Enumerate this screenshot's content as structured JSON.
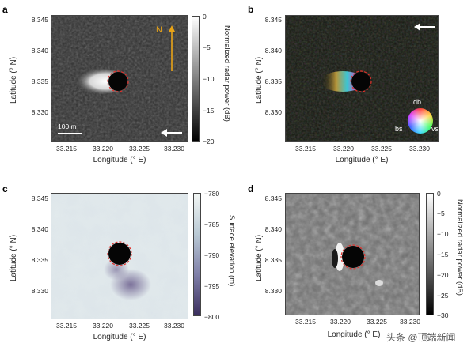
{
  "panels": {
    "a": {
      "letter": "a",
      "ylabel": "Latitude (° N)",
      "xlabel": "Longitude (° E)",
      "yticks": [
        "8.345",
        "8.340",
        "8.335",
        "8.330"
      ],
      "xticks": [
        "33.215",
        "33.220",
        "33.225",
        "33.230"
      ],
      "scalebar_label": "100 m",
      "north_label": "N",
      "colorbar_label": "Normalized radar power (dB)",
      "colorbar_ticks": [
        "0",
        "−5",
        "−10",
        "−15",
        "−20"
      ]
    },
    "b": {
      "letter": "b",
      "ylabel": "Latitude (° N)",
      "xlabel": "Longitude (° E)",
      "yticks": [
        "8.345",
        "8.340",
        "8.335",
        "8.330"
      ],
      "xticks": [
        "33.215",
        "33.220",
        "33.225",
        "33.230"
      ],
      "wheel_labels": {
        "top": "db",
        "left": "bs",
        "right": "vs"
      }
    },
    "c": {
      "letter": "c",
      "ylabel": "Latitude (° N)",
      "xlabel": "Longitude (° E)",
      "yticks": [
        "8.345",
        "8.340",
        "8.335",
        "8.330"
      ],
      "xticks": [
        "33.215",
        "33.220",
        "33.225",
        "33.230"
      ],
      "colorbar_label": "Surface elevation (m)",
      "colorbar_ticks": [
        "−780",
        "−785",
        "−790",
        "−795",
        "−800"
      ]
    },
    "d": {
      "letter": "d",
      "ylabel": "Latitude (° N)",
      "xlabel": "Longitude (° E)",
      "yticks": [
        "8.345",
        "8.340",
        "8.335",
        "8.330"
      ],
      "xticks": [
        "33.215",
        "33.220",
        "33.225",
        "33.230"
      ],
      "colorbar_label": "Normalized radar power (dB)",
      "colorbar_ticks": [
        "0",
        "−5",
        "−10",
        "−15",
        "−20",
        "−25",
        "−30"
      ]
    }
  },
  "watermark": "头条 @顶端新闻",
  "colors": {
    "crater_outline": "#e0302a",
    "north_arrow": "#e8a317",
    "frame": "#444444"
  }
}
